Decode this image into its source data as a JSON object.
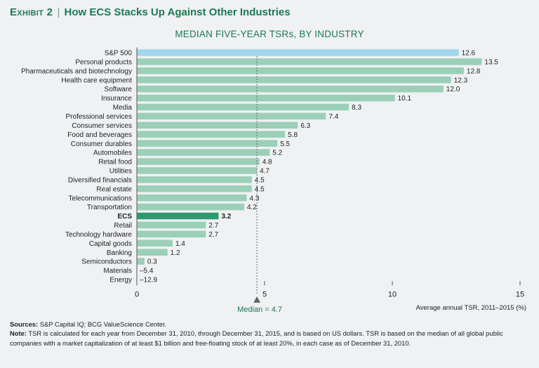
{
  "header": {
    "exhibit_label": "Exhibit 2",
    "separator": "|",
    "title": "How ECS Stacks Up Against Other Industries"
  },
  "colors": {
    "bar": "#9ccfb8",
    "highlight_sp500": "#9fd7ec",
    "highlight_ecs": "#2e9a6d",
    "accent_text": "#1b7a52",
    "background": "#eff1f3"
  },
  "chart_data": {
    "type": "bar",
    "orientation": "horizontal",
    "title": "MEDIAN FIVE-YEAR TSRs, BY INDUSTRY",
    "xlabel": "Average annual TSR, 2011–2015 (%)",
    "xlim": [
      0,
      15
    ],
    "xticks": [
      0,
      5,
      10,
      15
    ],
    "median": {
      "value": 4.7,
      "label": "Median = 4.7"
    },
    "categories": [
      "S&P 500",
      "Personal products",
      "Pharmaceuticals and biotechnology",
      "Health care equipment",
      "Software",
      "Insurance",
      "Media",
      "Professional services",
      "Consumer services",
      "Food and beverages",
      "Consumer durables",
      "Automobiles",
      "Retail food",
      "Utilities",
      "Diversified financials",
      "Real estate",
      "Telecommunications",
      "Transportation",
      "ECS",
      "Retail",
      "Technology hardware",
      "Capital goods",
      "Banking",
      "Semiconductors",
      "Materials",
      "Energy"
    ],
    "values": [
      12.6,
      13.5,
      12.8,
      12.3,
      12.0,
      10.1,
      8.3,
      7.4,
      6.3,
      5.8,
      5.5,
      5.2,
      4.8,
      4.7,
      4.5,
      4.5,
      4.3,
      4.2,
      3.2,
      2.7,
      2.7,
      1.4,
      1.2,
      0.3,
      -5.4,
      -12.9
    ],
    "value_labels": [
      "12.6",
      "13.5",
      "12.8",
      "12.3",
      "12.0",
      "10.1",
      "8.3",
      "7.4",
      "6.3",
      "5.8",
      "5.5",
      "5.2",
      "4.8",
      "4.7",
      "4.5",
      "4.5",
      "4.3",
      "4.2",
      "3.2",
      "2.7",
      "2.7",
      "1.4",
      "1.2",
      "0.3",
      "–5.4",
      "–12.9"
    ],
    "highlight": {
      "S&P 500": "sp500",
      "ECS": "ecs"
    }
  },
  "footer": {
    "sources_label": "Sources:",
    "sources_text": "S&P Capital IQ; BCG ValueScience Center.",
    "note_label": "Note:",
    "note_text": "TSR is calculated for each year from December 31, 2010, through December 31, 2015, and is based on US dollars. TSR is based on the median of all global public companies with a market capitalization of at least $1 billion and free-floating stock of at least 20%, in each case as of December 31, 2010."
  }
}
